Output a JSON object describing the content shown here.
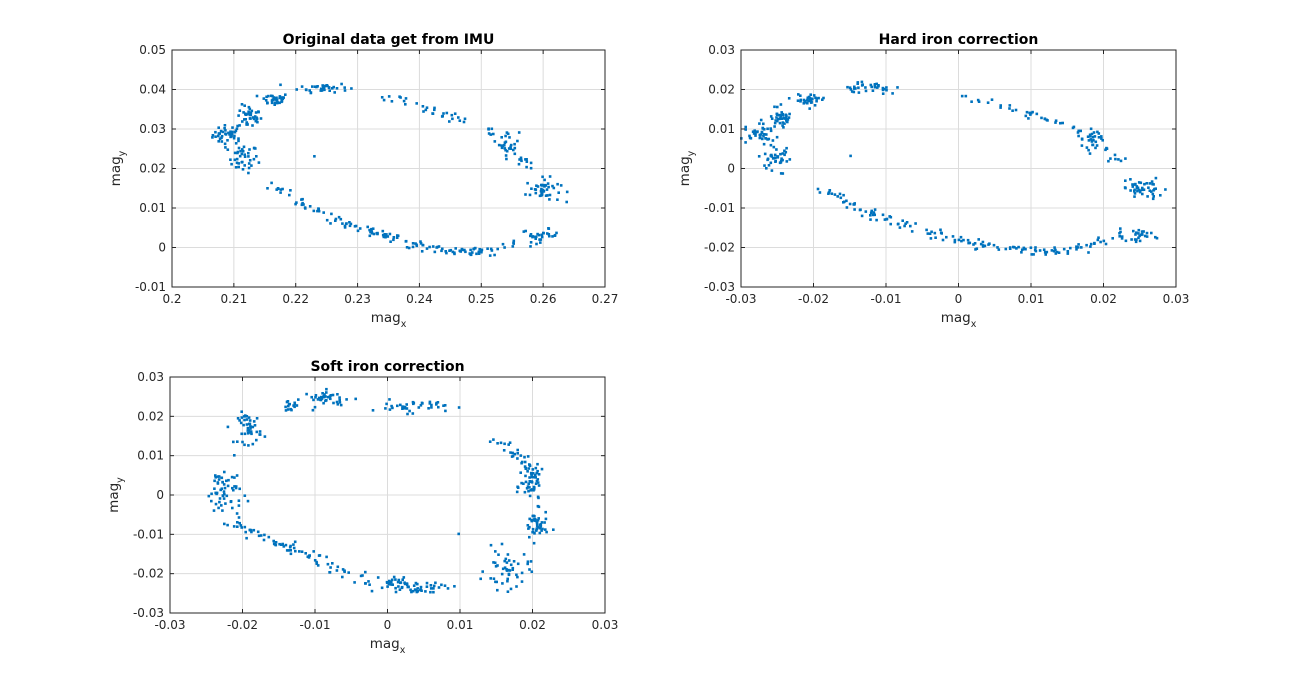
{
  "colors": {
    "marker": "#0072BD",
    "grid": "#dcdcdc",
    "axis": "#262626",
    "background": "#ffffff"
  },
  "chart_data": [
    {
      "type": "scatter",
      "title": "Original data get from IMU",
      "xlabel": "mag",
      "xlabel_sub": "x",
      "ylabel": "mag",
      "ylabel_sub": "y",
      "xlim": [
        0.2,
        0.27
      ],
      "ylim": [
        -0.01,
        0.05
      ],
      "xticks": [
        "0.2",
        "0.21",
        "0.22",
        "0.23",
        "0.24",
        "0.25",
        "0.26",
        "0.27"
      ],
      "yticks": [
        "-0.01",
        "0",
        "0.01",
        "0.02",
        "0.03",
        "0.04",
        "0.05"
      ],
      "grid": true,
      "clusters": [
        {
          "x": 0.209,
          "y": 0.0285,
          "sx": 0.0012,
          "sy": 0.0012,
          "n": 40
        },
        {
          "x": 0.2115,
          "y": 0.0225,
          "sx": 0.0012,
          "sy": 0.0018,
          "n": 40
        },
        {
          "x": 0.2125,
          "y": 0.033,
          "sx": 0.001,
          "sy": 0.0015,
          "n": 40
        },
        {
          "x": 0.2165,
          "y": 0.0375,
          "sx": 0.0012,
          "sy": 0.0008,
          "n": 35
        },
        {
          "x": 0.2245,
          "y": 0.0405,
          "sx": 0.002,
          "sy": 0.0006,
          "n": 35
        },
        {
          "x": 0.26,
          "y": 0.0145,
          "sx": 0.0014,
          "sy": 0.0015,
          "n": 45
        },
        {
          "x": 0.2545,
          "y": 0.0265,
          "sx": 0.0008,
          "sy": 0.0015,
          "n": 25
        },
        {
          "x": 0.2595,
          "y": 0.003,
          "sx": 0.0015,
          "sy": 0.0008,
          "n": 30
        },
        {
          "x": 0.223,
          "y": 0.023,
          "sx": 0.0001,
          "sy": 0.0001,
          "n": 1
        }
      ],
      "arcs": [
        {
          "x": [
            0.216,
            0.221,
            0.226,
            0.232,
            0.236,
            0.241,
            0.246,
            0.251,
            0.256
          ],
          "y": [
            0.016,
            0.011,
            0.007,
            0.004,
            0.002,
            0.0,
            -0.001,
            -0.001,
            0.002
          ],
          "n": 140,
          "jx": 0.0006,
          "jy": 0.0006
        },
        {
          "x": [
            0.234,
            0.238,
            0.242,
            0.245,
            0.248
          ],
          "y": [
            0.038,
            0.037,
            0.035,
            0.033,
            0.031
          ],
          "n": 30,
          "jx": 0.0005,
          "jy": 0.0005
        },
        {
          "x": [
            0.251,
            0.253,
            0.256,
            0.2575
          ],
          "y": [
            0.03,
            0.028,
            0.023,
            0.021
          ],
          "n": 20,
          "jx": 0.0005,
          "jy": 0.0006
        }
      ]
    },
    {
      "type": "scatter",
      "title": "Hard iron correction",
      "xlabel": "mag",
      "xlabel_sub": "x",
      "ylabel": "mag",
      "ylabel_sub": "y",
      "xlim": [
        -0.03,
        0.03
      ],
      "ylim": [
        -0.03,
        0.03
      ],
      "xticks": [
        "-0.03",
        "-0.02",
        "-0.01",
        "0",
        "0.01",
        "0.02",
        "0.03"
      ],
      "yticks": [
        "-0.03",
        "-0.02",
        "-0.01",
        "0",
        "0.01",
        "0.02",
        "0.03"
      ],
      "grid": true,
      "clusters": [
        {
          "x": -0.0275,
          "y": 0.0085,
          "sx": 0.0011,
          "sy": 0.0012,
          "n": 40
        },
        {
          "x": -0.0255,
          "y": 0.0025,
          "sx": 0.0011,
          "sy": 0.0018,
          "n": 40
        },
        {
          "x": -0.0245,
          "y": 0.013,
          "sx": 0.0009,
          "sy": 0.0015,
          "n": 40
        },
        {
          "x": -0.0205,
          "y": 0.0175,
          "sx": 0.001,
          "sy": 0.0008,
          "n": 35
        },
        {
          "x": -0.012,
          "y": 0.0205,
          "sx": 0.002,
          "sy": 0.0006,
          "n": 35
        },
        {
          "x": 0.0255,
          "y": -0.0055,
          "sx": 0.0013,
          "sy": 0.0015,
          "n": 45
        },
        {
          "x": 0.0185,
          "y": 0.0065,
          "sx": 0.0008,
          "sy": 0.0015,
          "n": 25
        },
        {
          "x": 0.0245,
          "y": -0.017,
          "sx": 0.0015,
          "sy": 0.0008,
          "n": 30
        },
        {
          "x": -0.015,
          "y": 0.003,
          "sx": 0.0001,
          "sy": 0.0001,
          "n": 1
        }
      ],
      "arcs": [
        {
          "x": [
            -0.02,
            -0.015,
            -0.01,
            -0.004,
            0.0,
            0.005,
            0.01,
            0.015,
            0.02
          ],
          "y": [
            -0.004,
            -0.009,
            -0.013,
            -0.016,
            -0.018,
            -0.02,
            -0.021,
            -0.021,
            -0.018
          ],
          "n": 140,
          "jx": 0.0006,
          "jy": 0.0006
        },
        {
          "x": [
            0.0,
            0.004,
            0.008,
            0.011,
            0.014
          ],
          "y": [
            0.018,
            0.017,
            0.015,
            0.013,
            0.011
          ],
          "n": 30,
          "jx": 0.0005,
          "jy": 0.0005
        },
        {
          "x": [
            0.016,
            0.018,
            0.021,
            0.0225
          ],
          "y": [
            0.01,
            0.008,
            0.003,
            0.001
          ],
          "n": 20,
          "jx": 0.0005,
          "jy": 0.0006
        }
      ]
    },
    {
      "type": "scatter",
      "title": "Soft iron correction",
      "xlabel": "mag",
      "xlabel_sub": "x",
      "ylabel": "mag",
      "ylabel_sub": "y",
      "xlim": [
        -0.03,
        0.03
      ],
      "ylim": [
        -0.03,
        0.03
      ],
      "xticks": [
        "-0.03",
        "-0.02",
        "-0.01",
        "0",
        "0.01",
        "0.02",
        "0.03"
      ],
      "yticks": [
        "-0.03",
        "-0.02",
        "-0.01",
        "0",
        "0.01",
        "0.02",
        "0.03"
      ],
      "grid": true,
      "clusters": [
        {
          "x": -0.019,
          "y": 0.017,
          "sx": 0.0008,
          "sy": 0.002,
          "n": 45
        },
        {
          "x": -0.0135,
          "y": 0.0225,
          "sx": 0.0006,
          "sy": 0.0006,
          "n": 15
        },
        {
          "x": -0.008,
          "y": 0.0245,
          "sx": 0.0018,
          "sy": 0.001,
          "n": 40
        },
        {
          "x": 0.003,
          "y": 0.0225,
          "sx": 0.0025,
          "sy": 0.0008,
          "n": 40
        },
        {
          "x": -0.0225,
          "y": 0.001,
          "sx": 0.0012,
          "sy": 0.0035,
          "n": 60
        },
        {
          "x": 0.02,
          "y": 0.002,
          "sx": 0.0008,
          "sy": 0.002,
          "n": 40
        },
        {
          "x": 0.0205,
          "y": -0.008,
          "sx": 0.0008,
          "sy": 0.002,
          "n": 45
        },
        {
          "x": 0.0165,
          "y": -0.019,
          "sx": 0.0015,
          "sy": 0.0025,
          "n": 50
        },
        {
          "x": 0.0045,
          "y": -0.0235,
          "sx": 0.0025,
          "sy": 0.0008,
          "n": 40
        },
        {
          "x": 0.01,
          "y": -0.01,
          "sx": 0.0001,
          "sy": 0.0001,
          "n": 1
        }
      ],
      "arcs": [
        {
          "x": [
            -0.021,
            -0.017,
            -0.013,
            -0.009,
            -0.005,
            -0.001,
            0.003
          ],
          "y": [
            -0.007,
            -0.011,
            -0.014,
            -0.017,
            -0.021,
            -0.022,
            -0.023
          ],
          "n": 100,
          "jx": 0.0006,
          "jy": 0.0007
        },
        {
          "x": [
            0.014,
            0.016,
            0.018,
            0.0195,
            0.02
          ],
          "y": [
            0.015,
            0.013,
            0.01,
            0.007,
            0.004
          ],
          "n": 40,
          "jx": 0.0006,
          "jy": 0.0006
        }
      ]
    }
  ]
}
